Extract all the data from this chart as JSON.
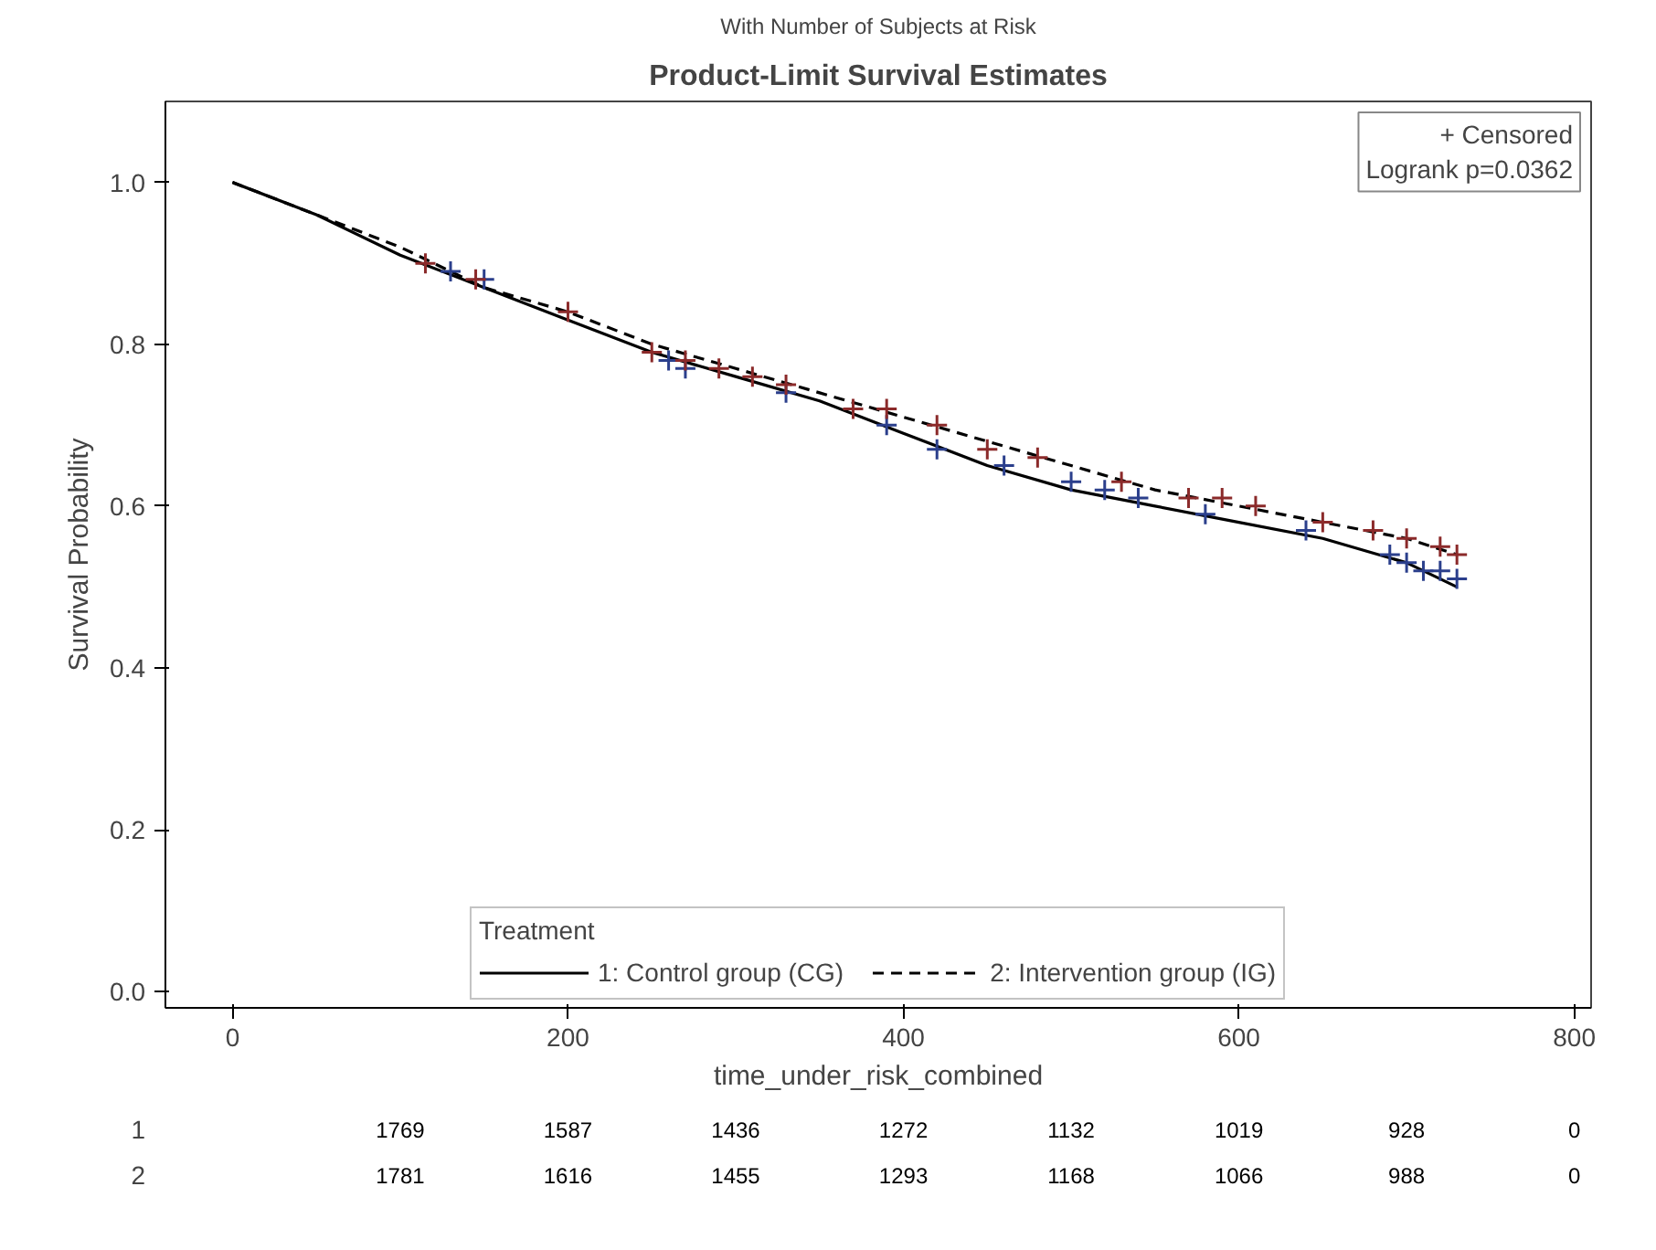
{
  "chart_data": [
    {
      "type": "line",
      "title": "Product-Limit Survival Estimates",
      "subtitle": "With Number of Subjects at Risk",
      "xlabel": "time_under_risk_combined",
      "ylabel": "Survival Probability",
      "legend_title": "Treatment",
      "legend": "bottom",
      "grid": false,
      "xlim": [
        -40,
        810
      ],
      "ylim": [
        -0.02,
        1.1
      ],
      "xticks": [
        0,
        200,
        400,
        600,
        800
      ],
      "yticks": [
        {
          "value": 0,
          "label": "0.0"
        },
        {
          "value": 0.2,
          "label": "0.2"
        },
        {
          "value": 0.4,
          "label": "0.4"
        },
        {
          "value": 0.6,
          "label": "0.6"
        },
        {
          "value": 0.8,
          "label": "0.8"
        },
        {
          "value": 1.0,
          "label": "1.0"
        }
      ],
      "series": [
        {
          "name": "1: Control group (CG)",
          "line_style": "solid",
          "color": "#000000",
          "x": [
            0,
            50,
            100,
            150,
            200,
            250,
            300,
            350,
            400,
            450,
            500,
            550,
            600,
            650,
            700,
            730
          ],
          "values": [
            1.0,
            0.96,
            0.91,
            0.87,
            0.83,
            0.79,
            0.76,
            0.73,
            0.69,
            0.65,
            0.62,
            0.6,
            0.58,
            0.56,
            0.53,
            0.5
          ]
        },
        {
          "name": "2: Intervention group (IG)",
          "line_style": "dashed",
          "color": "#000000",
          "x": [
            0,
            50,
            100,
            150,
            200,
            250,
            300,
            350,
            400,
            450,
            500,
            550,
            600,
            650,
            700,
            730
          ],
          "values": [
            1.0,
            0.96,
            0.92,
            0.87,
            0.84,
            0.8,
            0.77,
            0.74,
            0.71,
            0.68,
            0.65,
            0.62,
            0.6,
            0.58,
            0.56,
            0.54
          ]
        },
        {
          "type": "scatter",
          "marker": "cross",
          "color": "#2b3f8c",
          "x": [
            130,
            150,
            260,
            270,
            330,
            390,
            420,
            460,
            500,
            520,
            540,
            580,
            640,
            690,
            700,
            710,
            720,
            730
          ],
          "values": [
            0.89,
            0.88,
            0.78,
            0.77,
            0.74,
            0.7,
            0.67,
            0.65,
            0.63,
            0.62,
            0.61,
            0.59,
            0.57,
            0.54,
            0.53,
            0.52,
            0.52,
            0.51
          ]
        },
        {
          "type": "scatter",
          "marker": "cross",
          "color": "#8b2a2a",
          "x": [
            115,
            145,
            200,
            250,
            270,
            290,
            310,
            330,
            370,
            390,
            420,
            450,
            480,
            530,
            570,
            590,
            610,
            650,
            680,
            700,
            720,
            730
          ],
          "values": [
            0.9,
            0.88,
            0.84,
            0.79,
            0.78,
            0.77,
            0.76,
            0.75,
            0.72,
            0.72,
            0.7,
            0.67,
            0.66,
            0.63,
            0.61,
            0.61,
            0.6,
            0.58,
            0.57,
            0.56,
            0.55,
            0.54
          ]
        }
      ],
      "annotations": [
        "+ Censored",
        "Logrank p=0.0362"
      ]
    },
    {
      "type": "heatmap",
      "categories": [
        null,
        null,
        null,
        null,
        null,
        null,
        null,
        null
      ],
      "y_categories": [
        "1",
        "2"
      ],
      "cells": [
        [
          1769,
          1587,
          1436,
          1272,
          1132,
          1019,
          928,
          0
        ],
        [
          1781,
          1616,
          1455,
          1293,
          1168,
          1066,
          988,
          0
        ]
      ],
      "data_labels": true
    }
  ]
}
